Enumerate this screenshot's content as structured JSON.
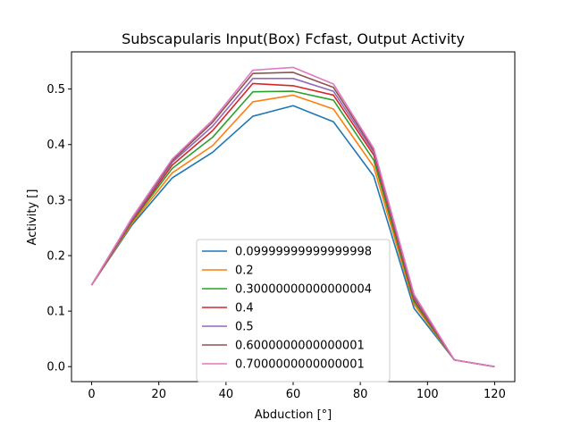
{
  "chart_data": {
    "type": "line",
    "title": "Subscapularis Input(Box) Fcfast, Output Activity",
    "xlabel": "Abduction [°]",
    "ylabel": "Activity []",
    "xlim": [
      -6,
      126
    ],
    "ylim": [
      -0.027,
      0.567
    ],
    "xticks": [
      0,
      20,
      40,
      60,
      80,
      100,
      120
    ],
    "yticks": [
      0.0,
      0.1,
      0.2,
      0.3,
      0.4,
      0.5
    ],
    "ytick_labels": [
      "0.0",
      "0.1",
      "0.2",
      "0.3",
      "0.4",
      "0.5"
    ],
    "grid": false,
    "legend_position": "lower center",
    "x": [
      0,
      12,
      24,
      36,
      48,
      60,
      72,
      84,
      96,
      108,
      120
    ],
    "series": [
      {
        "name": "0.09999999999999998",
        "color": "#1f77b4",
        "values": [
          0.147,
          0.255,
          0.34,
          0.386,
          0.451,
          0.47,
          0.441,
          0.343,
          0.105,
          0.012,
          0.0
        ]
      },
      {
        "name": "0.2",
        "color": "#ff7f0e",
        "values": [
          0.147,
          0.258,
          0.349,
          0.398,
          0.477,
          0.489,
          0.464,
          0.36,
          0.112,
          0.012,
          0.0
        ]
      },
      {
        "name": "0.30000000000000004",
        "color": "#2ca02c",
        "values": [
          0.147,
          0.261,
          0.357,
          0.413,
          0.495,
          0.496,
          0.48,
          0.372,
          0.117,
          0.012,
          0.0
        ]
      },
      {
        "name": "0.4",
        "color": "#d62728",
        "values": [
          0.147,
          0.263,
          0.363,
          0.425,
          0.51,
          0.506,
          0.489,
          0.381,
          0.121,
          0.012,
          0.0
        ]
      },
      {
        "name": "0.5",
        "color": "#9467bd",
        "values": [
          0.147,
          0.265,
          0.368,
          0.433,
          0.519,
          0.519,
          0.496,
          0.386,
          0.124,
          0.012,
          0.0
        ]
      },
      {
        "name": "0.6000000000000001",
        "color": "#8c564b",
        "values": [
          0.147,
          0.267,
          0.371,
          0.44,
          0.528,
          0.53,
          0.503,
          0.39,
          0.127,
          0.012,
          0.0
        ]
      },
      {
        "name": "0.7000000000000001",
        "color": "#e377c2",
        "values": [
          0.147,
          0.268,
          0.374,
          0.444,
          0.534,
          0.539,
          0.509,
          0.393,
          0.13,
          0.012,
          0.0
        ]
      }
    ]
  }
}
